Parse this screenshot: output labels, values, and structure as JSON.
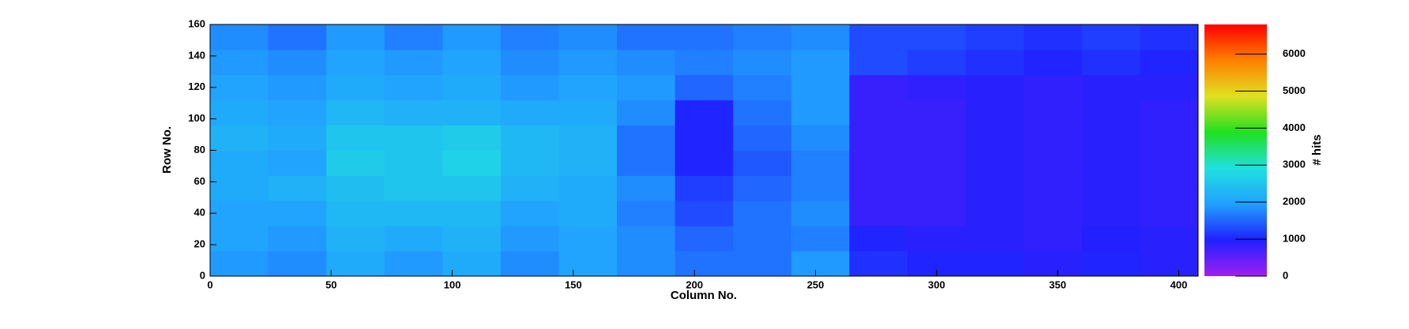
{
  "chart_data": {
    "type": "heatmap",
    "xlabel": "Column No.",
    "ylabel": "Row No.",
    "zlabel": "# hits",
    "xbins": [
      0,
      24,
      48,
      72,
      96,
      120,
      144,
      168,
      192,
      216,
      240,
      264,
      288,
      312,
      336,
      360,
      384,
      408
    ],
    "ybins": [
      0,
      16,
      32,
      48,
      64,
      80,
      96,
      112,
      128,
      144,
      160
    ],
    "values": [
      [
        1900,
        1800,
        2100,
        1900,
        2100,
        1800,
        2000,
        1800,
        1600,
        1600,
        1900,
        1100,
        1000,
        1000,
        900,
        1000,
        900
      ],
      [
        2000,
        1900,
        2200,
        2100,
        2200,
        1900,
        2000,
        1800,
        1500,
        1600,
        1700,
        1000,
        900,
        900,
        850,
        950,
        900
      ],
      [
        2000,
        2000,
        2300,
        2300,
        2300,
        2000,
        2100,
        1700,
        1300,
        1600,
        1800,
        800,
        800,
        900,
        850,
        900,
        850
      ],
      [
        2100,
        2200,
        2400,
        2500,
        2500,
        2200,
        2100,
        1800,
        1200,
        1500,
        1700,
        800,
        800,
        900,
        850,
        900,
        850
      ],
      [
        2100,
        2000,
        2600,
        2500,
        2700,
        2300,
        2200,
        1600,
        1000,
        1400,
        1700,
        800,
        800,
        900,
        850,
        900,
        850
      ],
      [
        2200,
        2100,
        2500,
        2500,
        2600,
        2300,
        2200,
        1600,
        1000,
        1500,
        1800,
        800,
        800,
        900,
        850,
        900,
        850
      ],
      [
        2100,
        2000,
        2300,
        2200,
        2200,
        2100,
        2100,
        1800,
        1000,
        1600,
        1900,
        800,
        800,
        900,
        850,
        900,
        850
      ],
      [
        2000,
        1900,
        2100,
        2000,
        2100,
        1900,
        2000,
        1900,
        1500,
        1700,
        1900,
        800,
        850,
        900,
        850,
        900,
        900
      ],
      [
        1900,
        1800,
        2000,
        1900,
        2000,
        1800,
        1900,
        1800,
        1700,
        1800,
        1900,
        1300,
        1200,
        1100,
        1000,
        1100,
        1000
      ],
      [
        1800,
        1600,
        1900,
        1700,
        1900,
        1700,
        1800,
        1600,
        1600,
        1700,
        1800,
        1300,
        1300,
        1200,
        1100,
        1200,
        1100
      ]
    ],
    "xlim": [
      0,
      408
    ],
    "ylim": [
      0,
      160
    ],
    "zlim": [
      0,
      6800
    ],
    "xticks": [
      0,
      50,
      100,
      150,
      200,
      250,
      300,
      350,
      400
    ],
    "yticks": [
      0,
      20,
      40,
      60,
      80,
      100,
      120,
      140,
      160
    ],
    "zticks": [
      0,
      1000,
      2000,
      3000,
      4000,
      5000,
      6000
    ],
    "colormap": [
      "#a020f0",
      "#2020ff",
      "#20a0ff",
      "#20e0e0",
      "#20e020",
      "#e0e020",
      "#ff8000",
      "#ff0000"
    ]
  }
}
